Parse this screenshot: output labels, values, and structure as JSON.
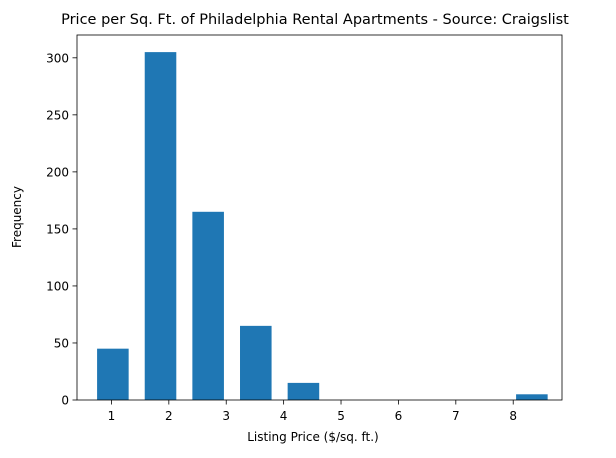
{
  "chart_data": {
    "type": "bar",
    "title": "Price per Sq. Ft. of Philadelphia Rental Apartments - Source: Craigslist",
    "xlabel": "Listing Price ($/sq. ft.)",
    "ylabel": "Frequency",
    "bar_color": "#1f77b4",
    "grid": false,
    "xlim": [
      0.4,
      8.85
    ],
    "ylim": [
      0,
      320
    ],
    "x_ticks": [
      1,
      2,
      3,
      4,
      5,
      6,
      7,
      8
    ],
    "y_ticks": [
      0,
      50,
      100,
      150,
      200,
      250,
      300
    ],
    "bars": [
      {
        "start": 0.75,
        "end": 1.3,
        "value": 45
      },
      {
        "start": 1.58,
        "end": 2.13,
        "value": 305
      },
      {
        "start": 2.41,
        "end": 2.96,
        "value": 165
      },
      {
        "start": 3.24,
        "end": 3.79,
        "value": 65
      },
      {
        "start": 4.07,
        "end": 4.62,
        "value": 15
      },
      {
        "start": 8.05,
        "end": 8.6,
        "value": 5
      }
    ]
  }
}
